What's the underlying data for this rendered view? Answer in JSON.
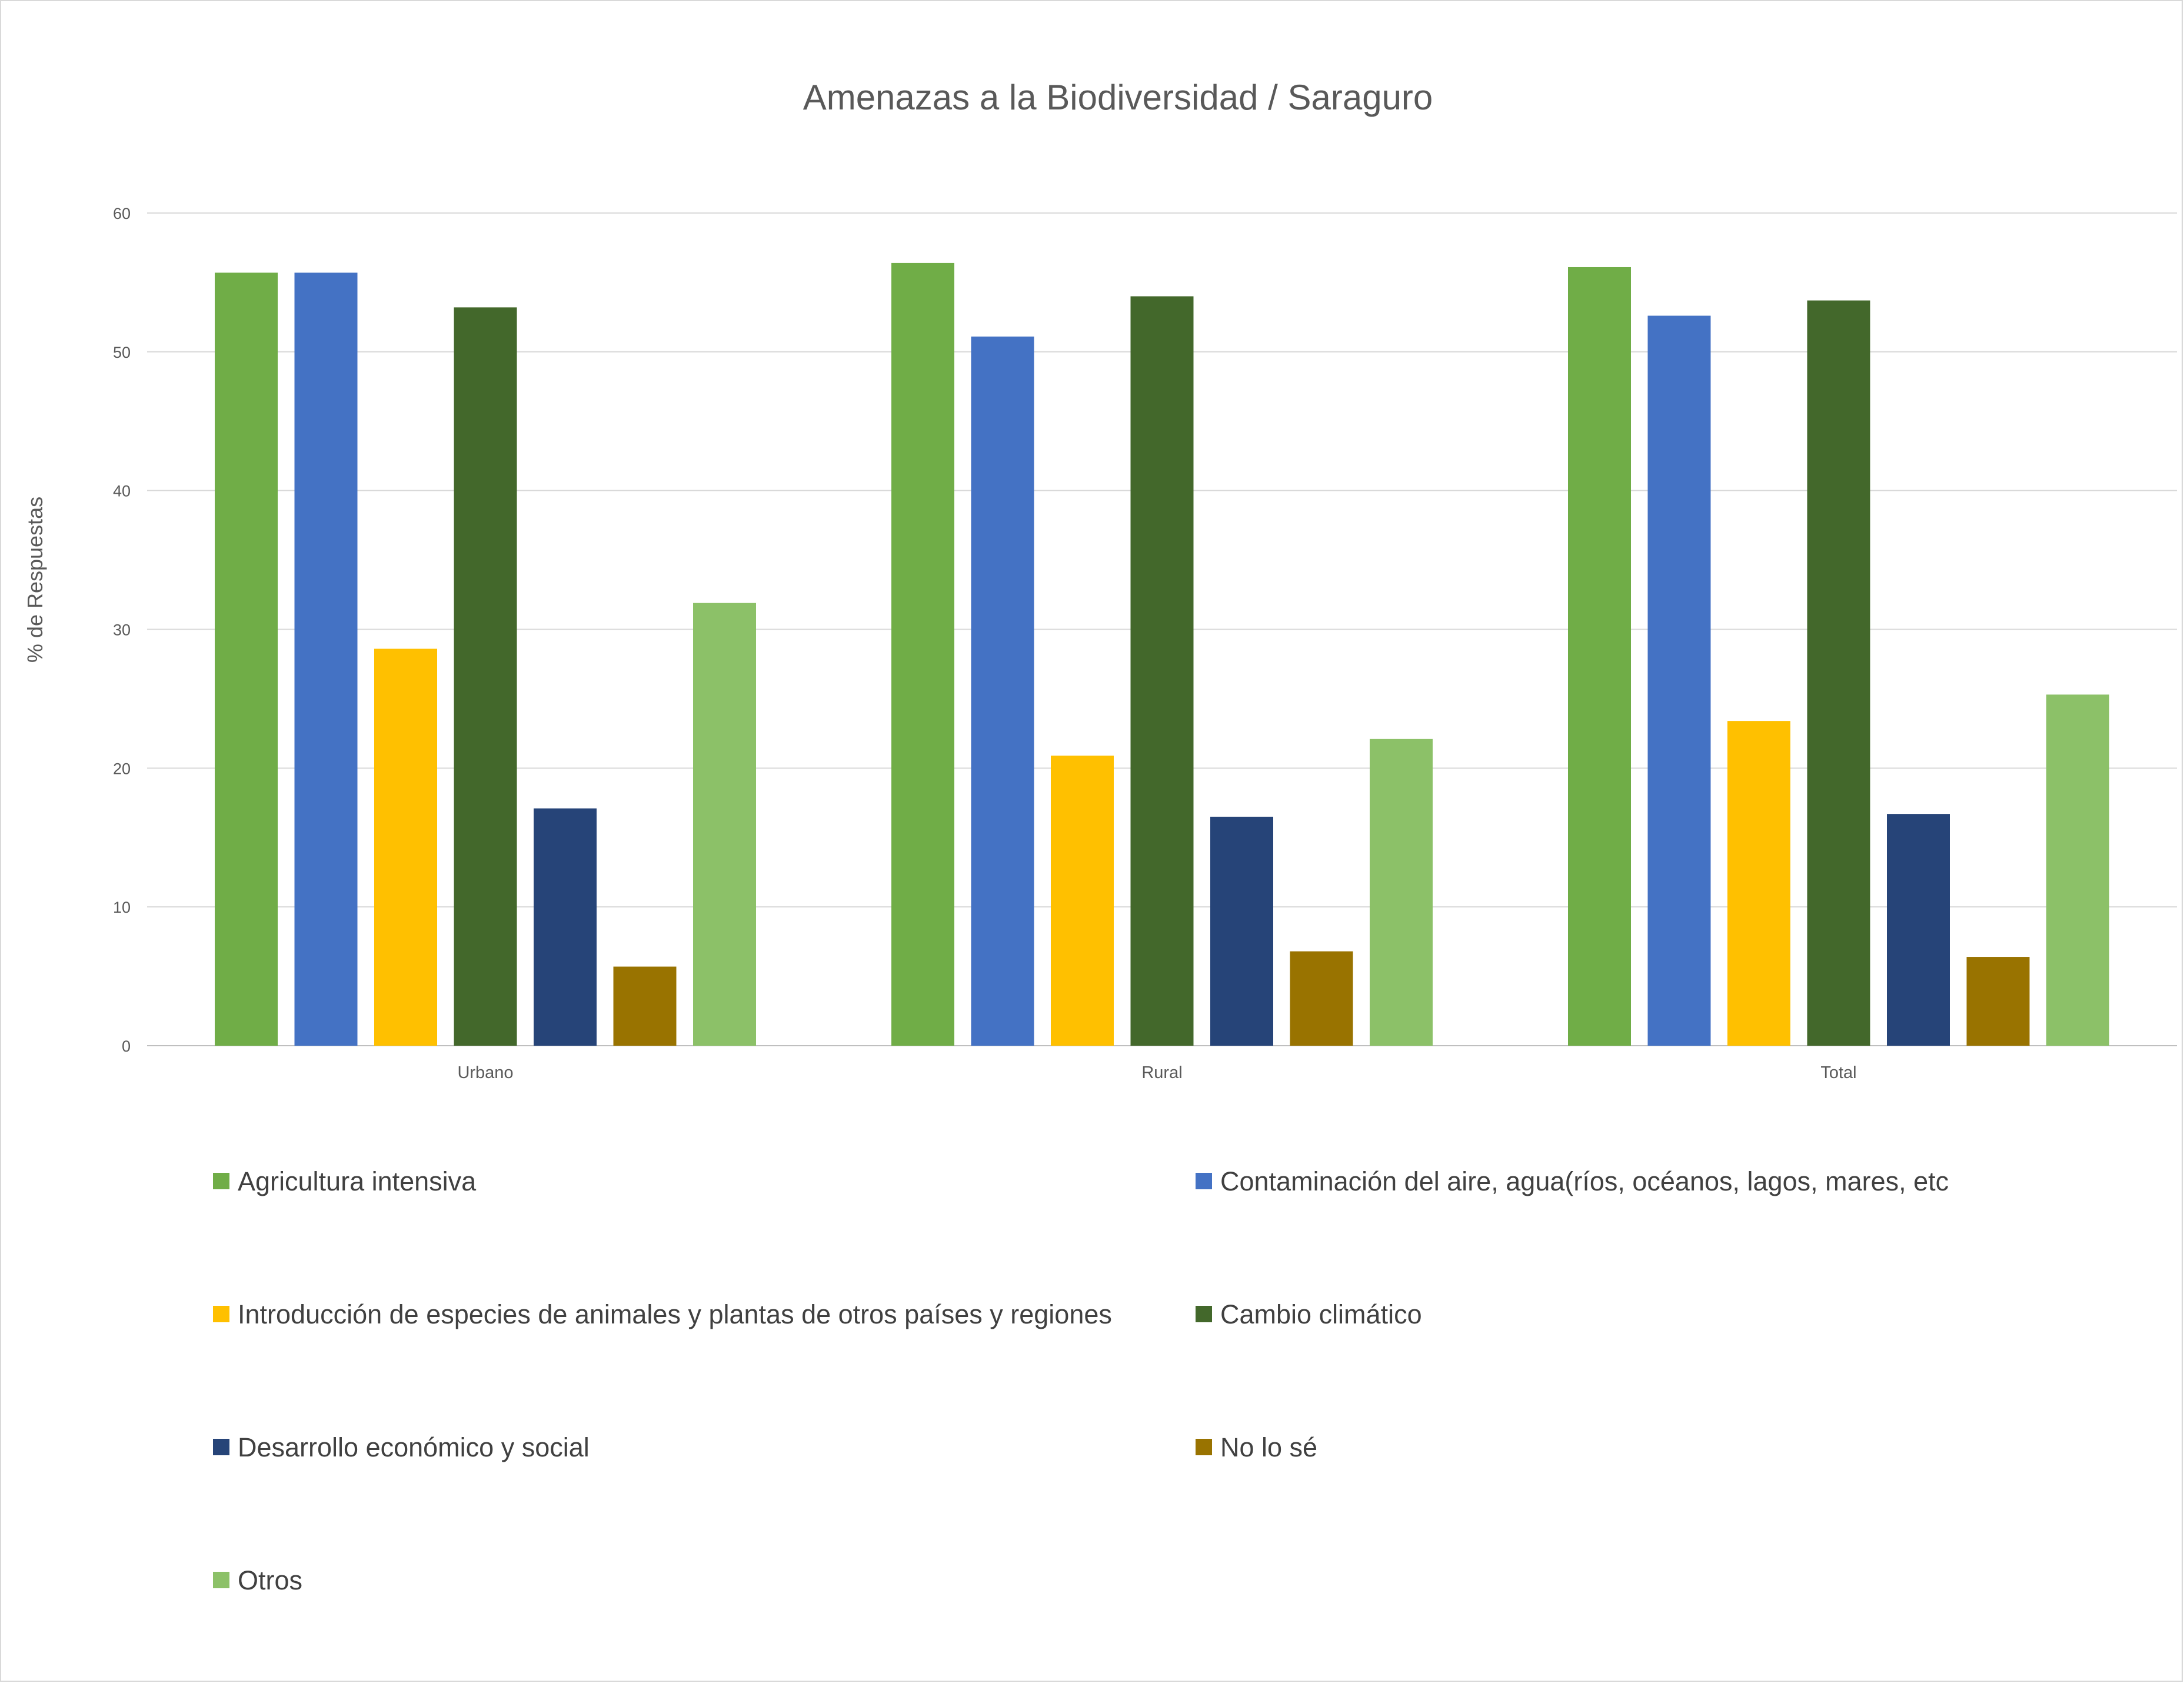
{
  "chart_data": {
    "type": "bar",
    "title": "Amenazas a la Biodiversidad / Saraguro",
    "xlabel": "",
    "ylabel": "% de Respuestas",
    "ylim": [
      0,
      60
    ],
    "yticks": [
      0,
      10,
      20,
      30,
      40,
      50,
      60
    ],
    "grid": true,
    "legend_position": "bottom",
    "categories": [
      "Urbano",
      "Rural",
      "Total"
    ],
    "series": [
      {
        "name": "Agricultura intensiva",
        "color": "#70AD47",
        "values": [
          55.7,
          56.4,
          56.1
        ]
      },
      {
        "name": "Contaminación del aire, agua(ríos, océanos, lagos, mares, etc",
        "color": "#4472C4",
        "values": [
          55.7,
          51.1,
          52.6
        ]
      },
      {
        "name": "Introducción de especies de animales y plantas de otros países y regiones",
        "color": "#FFC000",
        "values": [
          28.6,
          20.9,
          23.4
        ]
      },
      {
        "name": "Cambio climático",
        "color": "#43682B",
        "values": [
          53.2,
          54.0,
          53.7
        ]
      },
      {
        "name": "Desarrollo económico y social",
        "color": "#264478",
        "values": [
          17.1,
          16.5,
          16.7
        ]
      },
      {
        "name": "No lo sé",
        "color": "#997300",
        "values": [
          5.7,
          6.8,
          6.4
        ]
      },
      {
        "name": "Otros",
        "color": "#8CC168",
        "values": [
          31.9,
          22.1,
          25.3
        ]
      }
    ]
  }
}
